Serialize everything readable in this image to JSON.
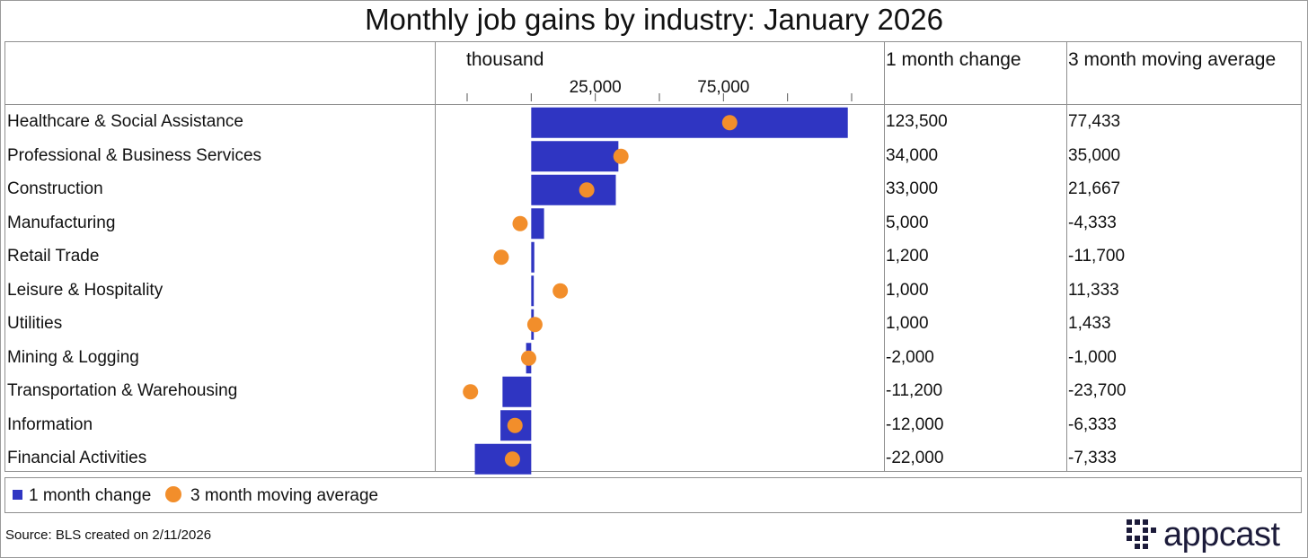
{
  "title": "Monthly job gains by industry: January 2026",
  "headers": {
    "unit": "thousand",
    "col_change": "1 month change",
    "col_avg": "3 month moving average"
  },
  "legend": {
    "change_label": "1 month change",
    "avg_label": "3 month moving average"
  },
  "source": "Source: BLS created on 2/11/2026",
  "logo": {
    "text": "appcast"
  },
  "colors": {
    "bar": "#2f35c2",
    "dot": "#f28e2b",
    "grid": "#8f8f8f"
  },
  "rows": [
    {
      "industry": "Healthcare & Social Assistance",
      "change": "123,500",
      "avg": "77,433"
    },
    {
      "industry": "Professional & Business Services",
      "change": "34,000",
      "avg": "35,000"
    },
    {
      "industry": "Construction",
      "change": "33,000",
      "avg": "21,667"
    },
    {
      "industry": "Manufacturing",
      "change": "5,000",
      "avg": "-4,333"
    },
    {
      "industry": "Retail Trade",
      "change": "1,200",
      "avg": "-11,700"
    },
    {
      "industry": "Leisure & Hospitality",
      "change": "1,000",
      "avg": "11,333"
    },
    {
      "industry": "Utilities",
      "change": "1,000",
      "avg": "1,433"
    },
    {
      "industry": "Mining & Logging",
      "change": "-2,000",
      "avg": "-1,000"
    },
    {
      "industry": "Transportation & Warehousing",
      "change": "-11,200",
      "avg": "-23,700"
    },
    {
      "industry": "Information",
      "change": "-12,000",
      "avg": "-6,333"
    },
    {
      "industry": "Financial Activities",
      "change": "-22,000",
      "avg": "-7,333"
    }
  ],
  "chart_data": {
    "type": "bar",
    "orientation": "horizontal",
    "unit_label": "thousand",
    "categories": [
      "Healthcare & Social Assistance",
      "Professional & Business Services",
      "Construction",
      "Manufacturing",
      "Retail Trade",
      "Leisure & Hospitality",
      "Utilities",
      "Mining & Logging",
      "Transportation & Warehousing",
      "Information",
      "Financial Activities"
    ],
    "series": [
      {
        "name": "1 month change",
        "type": "bar",
        "values": [
          123500,
          34000,
          33000,
          5000,
          1200,
          1000,
          1000,
          -2000,
          -11200,
          -12000,
          -22000
        ]
      },
      {
        "name": "3 month moving average",
        "type": "dot",
        "values": [
          77433,
          35000,
          21667,
          -4333,
          -11700,
          11333,
          1433,
          -1000,
          -23700,
          -6333,
          -7333
        ]
      }
    ],
    "xlim": [
      -25000,
      125000
    ],
    "x_ticks": [
      -25000,
      0,
      25000,
      50000,
      75000,
      100000,
      125000
    ],
    "x_tick_labels": [
      {
        "value": 25000,
        "label": "25,000"
      },
      {
        "value": 75000,
        "label": "75,000"
      }
    ],
    "legend_position": "bottom"
  }
}
